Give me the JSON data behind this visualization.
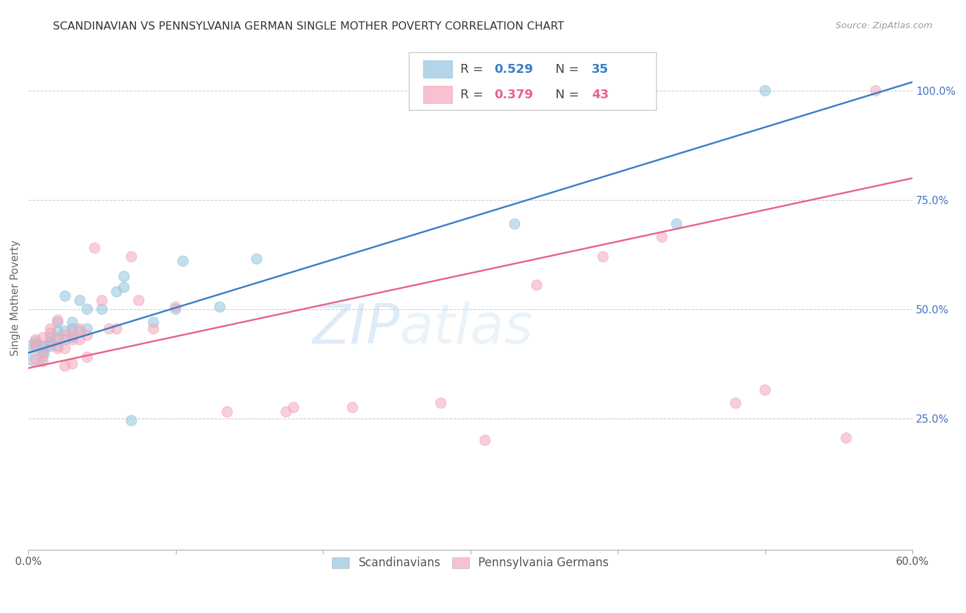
{
  "title": "SCANDINAVIAN VS PENNSYLVANIA GERMAN SINGLE MOTHER POVERTY CORRELATION CHART",
  "source": "Source: ZipAtlas.com",
  "ylabel": "Single Mother Poverty",
  "xlim": [
    0.0,
    0.6
  ],
  "ylim": [
    -0.05,
    1.1
  ],
  "ytick_labels_right": [
    "25.0%",
    "50.0%",
    "75.0%",
    "100.0%"
  ],
  "ytick_positions_right": [
    0.25,
    0.5,
    0.75,
    1.0
  ],
  "grid_color": "#cccccc",
  "background_color": "#ffffff",
  "legend_blue_r": "0.529",
  "legend_blue_n": "35",
  "legend_pink_r": "0.379",
  "legend_pink_n": "43",
  "blue_color": "#92c5de",
  "pink_color": "#f4a9bb",
  "blue_line_color": "#3a7ec6",
  "pink_line_color": "#e8638a",
  "blue_line_x0": 0.0,
  "blue_line_y0": 0.4,
  "blue_line_x1": 0.6,
  "blue_line_y1": 1.02,
  "pink_line_x0": 0.0,
  "pink_line_y0": 0.365,
  "pink_line_x1": 0.6,
  "pink_line_y1": 0.8,
  "scandinavians_x": [
    0.005,
    0.005,
    0.005,
    0.01,
    0.01,
    0.015,
    0.015,
    0.015,
    0.02,
    0.02,
    0.02,
    0.02,
    0.025,
    0.025,
    0.025,
    0.03,
    0.03,
    0.03,
    0.035,
    0.035,
    0.04,
    0.04,
    0.05,
    0.06,
    0.065,
    0.065,
    0.07,
    0.085,
    0.1,
    0.105,
    0.13,
    0.155,
    0.33,
    0.44,
    0.5
  ],
  "scandinavians_y": [
    0.4,
    0.415,
    0.425,
    0.4,
    0.415,
    0.415,
    0.425,
    0.435,
    0.415,
    0.435,
    0.45,
    0.47,
    0.43,
    0.45,
    0.53,
    0.435,
    0.455,
    0.47,
    0.45,
    0.52,
    0.455,
    0.5,
    0.5,
    0.54,
    0.55,
    0.575,
    0.245,
    0.47,
    0.5,
    0.61,
    0.505,
    0.615,
    0.695,
    0.695,
    1.0
  ],
  "scandinavians_sizes": [
    800,
    120,
    120,
    120,
    120,
    120,
    120,
    120,
    120,
    120,
    120,
    120,
    120,
    120,
    120,
    120,
    120,
    120,
    120,
    120,
    120,
    120,
    120,
    120,
    120,
    120,
    120,
    120,
    120,
    120,
    120,
    120,
    120,
    120,
    120
  ],
  "pennsylvania_x": [
    0.005,
    0.005,
    0.005,
    0.01,
    0.01,
    0.01,
    0.015,
    0.015,
    0.015,
    0.02,
    0.02,
    0.02,
    0.025,
    0.025,
    0.025,
    0.03,
    0.03,
    0.03,
    0.035,
    0.035,
    0.04,
    0.04,
    0.045,
    0.05,
    0.055,
    0.06,
    0.07,
    0.075,
    0.085,
    0.1,
    0.135,
    0.175,
    0.18,
    0.22,
    0.28,
    0.31,
    0.345,
    0.39,
    0.43,
    0.48,
    0.5,
    0.555,
    0.575
  ],
  "pennsylvania_y": [
    0.385,
    0.415,
    0.43,
    0.38,
    0.4,
    0.435,
    0.42,
    0.445,
    0.455,
    0.41,
    0.43,
    0.475,
    0.37,
    0.41,
    0.44,
    0.375,
    0.43,
    0.445,
    0.43,
    0.455,
    0.39,
    0.44,
    0.64,
    0.52,
    0.455,
    0.455,
    0.62,
    0.52,
    0.455,
    0.505,
    0.265,
    0.265,
    0.275,
    0.275,
    0.285,
    0.2,
    0.555,
    0.62,
    0.665,
    0.285,
    0.315,
    0.205,
    1.0
  ],
  "pennsylvania_sizes": [
    120,
    120,
    120,
    120,
    120,
    120,
    120,
    120,
    120,
    120,
    120,
    120,
    120,
    120,
    120,
    120,
    120,
    120,
    120,
    120,
    120,
    120,
    120,
    120,
    120,
    120,
    120,
    120,
    120,
    120,
    120,
    120,
    120,
    120,
    120,
    120,
    120,
    120,
    120,
    120,
    120,
    120,
    120
  ]
}
